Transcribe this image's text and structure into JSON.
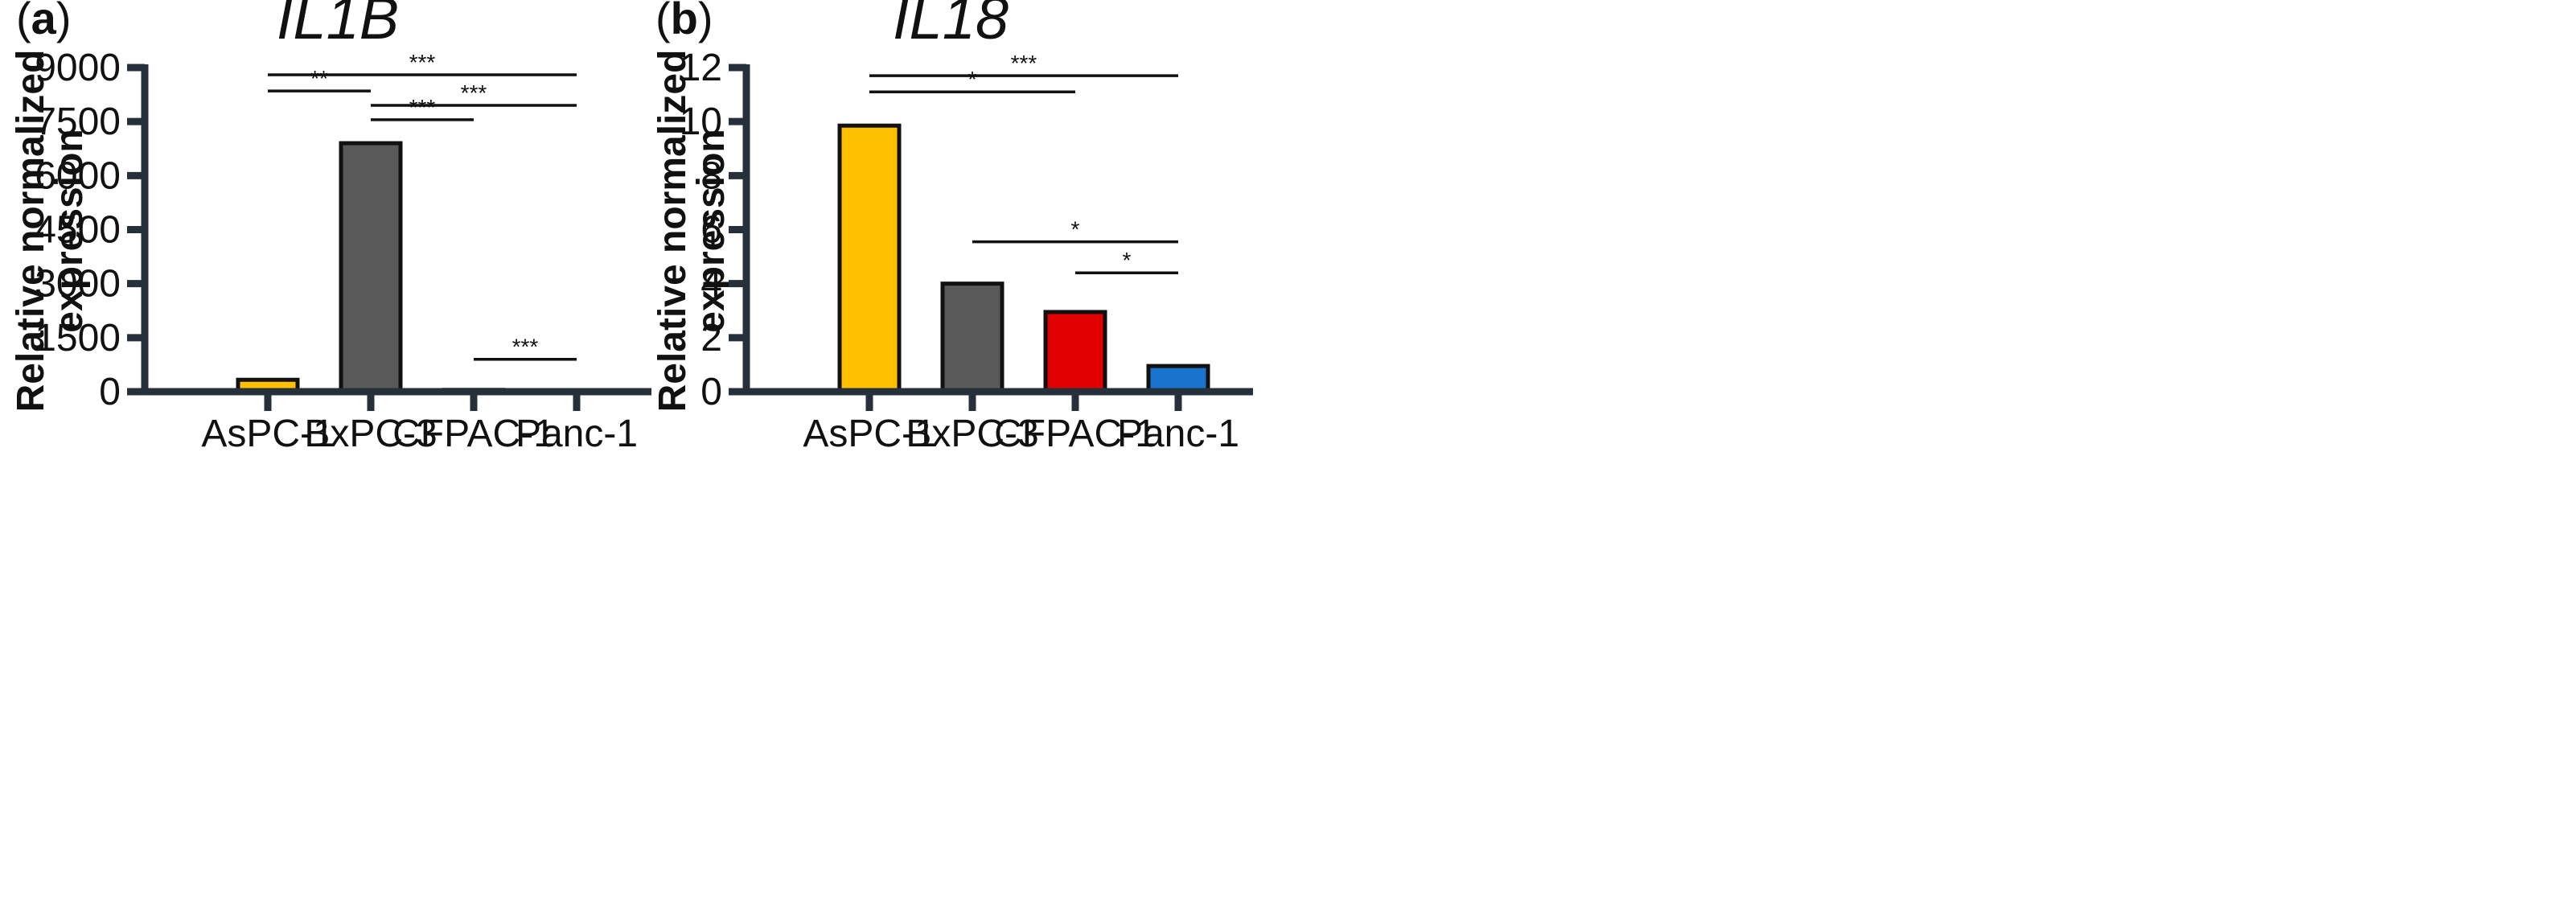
{
  "chart_data": [
    {
      "type": "bar",
      "panel_label": "(a)",
      "panel_letter": "a",
      "title": "IL1B",
      "ylabel_lines": [
        "Relative normalized",
        "expression"
      ],
      "categories": [
        "AsPC-1",
        "BxPC-3",
        "CFPAC-1",
        "Panc-1"
      ],
      "values": [
        330,
        6900,
        50,
        10
      ],
      "colors": [
        "#FFC000",
        "#595959",
        "#E00000",
        "#1874CD"
      ],
      "ylim": [
        0,
        9000
      ],
      "yticks": [
        0,
        1500,
        3000,
        4500,
        6000,
        7500,
        9000
      ],
      "significance": [
        {
          "from": 0,
          "to": 3,
          "y": 8800,
          "label": "***"
        },
        {
          "from": 0,
          "to": 1,
          "y": 8350,
          "label": "**"
        },
        {
          "from": 1,
          "to": 3,
          "y": 7950,
          "label": "***"
        },
        {
          "from": 1,
          "to": 2,
          "y": 7550,
          "label": "***"
        },
        {
          "from": 2,
          "to": 3,
          "y": 900,
          "label": "***"
        }
      ]
    },
    {
      "type": "bar",
      "panel_label": "(b)",
      "panel_letter": "b",
      "title": "IL18",
      "ylabel_lines": [
        "Relative normalized",
        "expression"
      ],
      "categories": [
        "AsPC-1",
        "BxPC-3",
        "CFPAC-1",
        "Panc-1"
      ],
      "values": [
        9.85,
        4.0,
        2.95,
        0.95
      ],
      "colors": [
        "#FFC000",
        "#595959",
        "#E00000",
        "#1874CD"
      ],
      "ylim": [
        0,
        12
      ],
      "yticks": [
        0,
        2,
        4,
        6,
        8,
        10,
        12
      ],
      "significance": [
        {
          "from": 0,
          "to": 3,
          "y": 11.7,
          "label": "***"
        },
        {
          "from": 0,
          "to": 2,
          "y": 11.1,
          "label": "*"
        },
        {
          "from": 1,
          "to": 3,
          "y": 5.55,
          "label": "*"
        },
        {
          "from": 2,
          "to": 3,
          "y": 4.4,
          "label": "*"
        }
      ]
    }
  ]
}
